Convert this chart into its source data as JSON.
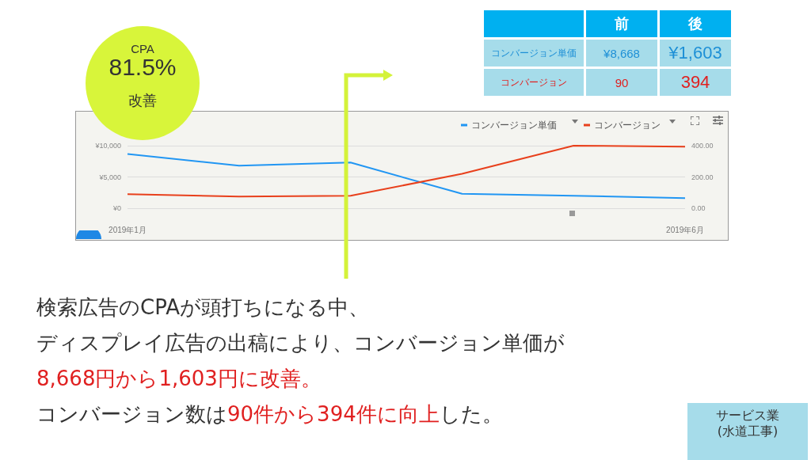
{
  "chart_data": {
    "type": "line",
    "categories": [
      "2019年1月",
      null,
      null,
      null,
      null,
      "2019年6月"
    ],
    "series": [
      {
        "name": "コンバージョン単価",
        "color": "#2196f3",
        "values": [
          8668,
          6800,
          7300,
          2300,
          2000,
          1603
        ]
      },
      {
        "name": "コンバージョン",
        "color": "#e8401c",
        "axis": "y2",
        "values": [
          90,
          75,
          80,
          220,
          400,
          394
        ]
      }
    ],
    "ylim": [
      0,
      10000
    ],
    "yticks": [
      {
        "value": 0,
        "label": "¥0"
      },
      {
        "value": 5000,
        "label": "¥5,000"
      },
      {
        "value": 10000,
        "label": "¥10,000"
      }
    ],
    "y2lim": [
      0,
      400
    ],
    "y2ticks": [
      {
        "value": 0,
        "label": "0.00"
      },
      {
        "value": 200,
        "label": "200.00"
      },
      {
        "value": 400,
        "label": "400.00"
      }
    ],
    "grid": "y",
    "legend": "top right",
    "marker": "none",
    "line_style": "solid",
    "annotations": [
      "前",
      "後",
      "コンバージョン単価",
      "¥8,668",
      "¥1,603",
      "コンバージョン",
      "90",
      "394",
      "CPA",
      "81.5%",
      "改善",
      "検索広告のCPAが頭打ちになる中、",
      "ディスプレイ広告の出稿により、コンバージョン単価が",
      "8,668円から1,603円に改善。",
      "コンバージョン数は",
      "90件から394件に向上",
      "した。",
      "サービス業",
      "(水道工事)"
    ]
  }
}
